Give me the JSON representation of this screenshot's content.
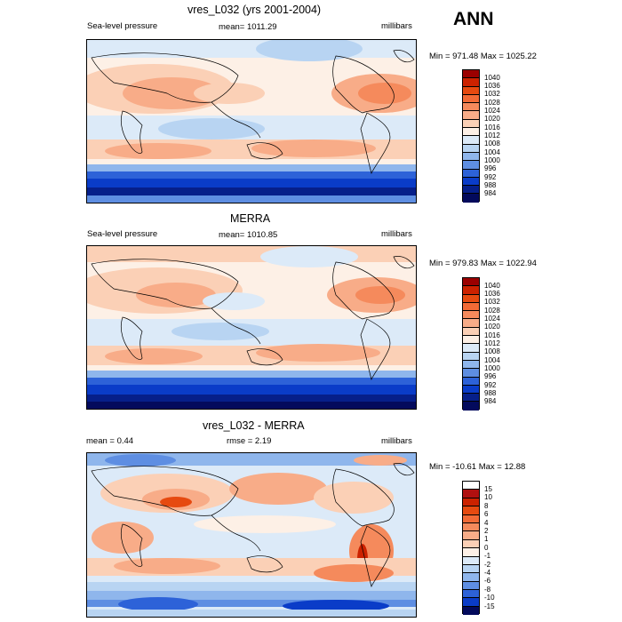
{
  "header": {
    "season": "ANN"
  },
  "panels": [
    {
      "title": "vres_L032 (yrs 2001-2004)",
      "left": "Sea-level pressure",
      "center": "mean= 1011.29",
      "units": "millibars",
      "range": "Min = 971.48 Max = 1025.22",
      "levels": [
        "1040",
        "1036",
        "1032",
        "1028",
        "1024",
        "1020",
        "1016",
        "1012",
        "1008",
        "1004",
        "1000",
        "996",
        "992",
        "988",
        "984"
      ],
      "colors": [
        "#9b0000",
        "#cc2200",
        "#e64a10",
        "#f26a36",
        "#f58a5c",
        "#f8ac88",
        "#fbd0b6",
        "#fdf0e6",
        "#dceaf8",
        "#b8d4f2",
        "#8fb6ec",
        "#5e8ee2",
        "#2d62d8",
        "#0a3cc8",
        "#061f8a",
        "#030a5c"
      ]
    },
    {
      "title": "MERRA",
      "left": "Sea-level pressure",
      "center": "mean= 1010.85",
      "units": "millibars",
      "range": "Min = 979.83 Max = 1022.94",
      "levels": [
        "1040",
        "1036",
        "1032",
        "1028",
        "1024",
        "1020",
        "1016",
        "1012",
        "1008",
        "1004",
        "1000",
        "996",
        "992",
        "988",
        "984"
      ],
      "colors": [
        "#9b0000",
        "#cc2200",
        "#e64a10",
        "#f26a36",
        "#f58a5c",
        "#f8ac88",
        "#fbd0b6",
        "#fdf0e6",
        "#dceaf8",
        "#b8d4f2",
        "#8fb6ec",
        "#5e8ee2",
        "#2d62d8",
        "#0a3cc8",
        "#061f8a",
        "#030a5c"
      ]
    },
    {
      "title": "vres_L032 - MERRA",
      "left": "mean =   0.44",
      "center": "rmse =   2.19",
      "units": "millibars",
      "range": "Min = -10.61 Max =  12.88",
      "levels": [
        "15",
        "10",
        "8",
        "6",
        "4",
        "2",
        "1",
        "0",
        "-1",
        "-2",
        "-4",
        "-6",
        "-8",
        "-10",
        "-15"
      ],
      "colors": [
        "#ffffff",
        "#b01010",
        "#cc2200",
        "#e64a10",
        "#f26a36",
        "#f58a5c",
        "#f8ac88",
        "#fbd0b6",
        "#fdf0e6",
        "#dceaf8",
        "#b8d4f2",
        "#8fb6ec",
        "#5e8ee2",
        "#2d62d8",
        "#0a3cc8",
        "#030a5c"
      ]
    }
  ]
}
